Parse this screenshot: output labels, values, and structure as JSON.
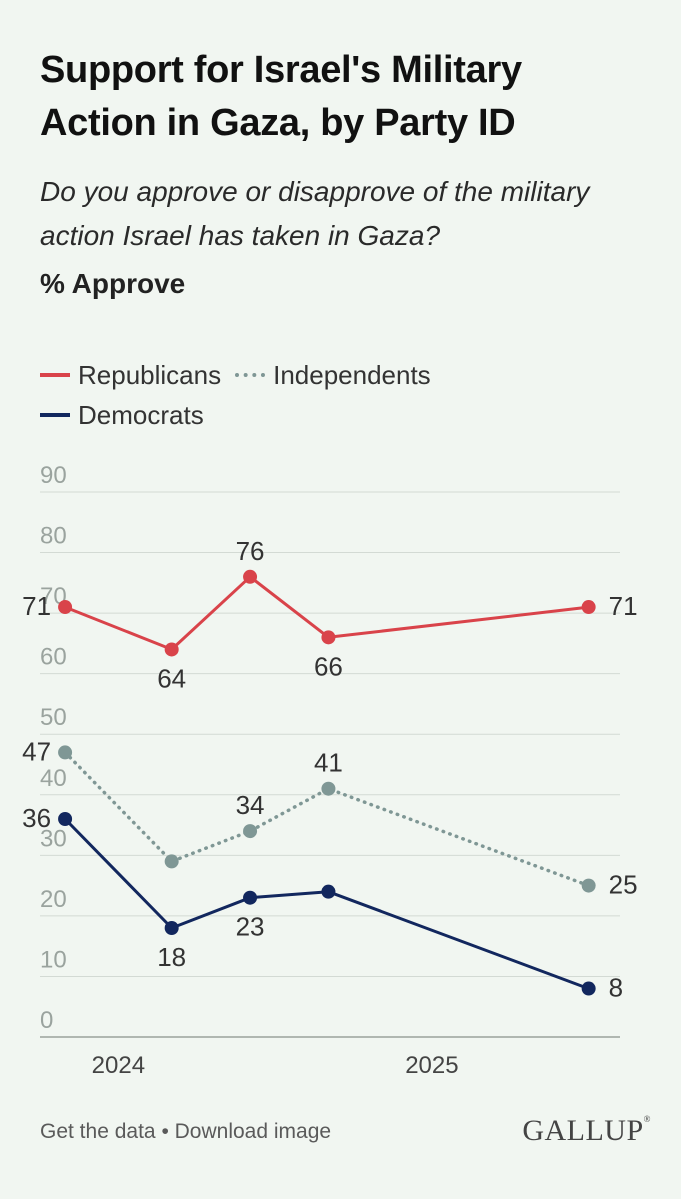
{
  "title": "Support for Israel's Military Action in Gaza, by Party ID",
  "subtitle": "Do you approve or disapprove of the military action Israel has taken in Gaza?",
  "measure": "% Approve",
  "footer": {
    "get_data": "Get the data",
    "separator": "•",
    "download": "Download image",
    "brand": "GALLUP"
  },
  "chart_data": {
    "type": "line",
    "title": "Support for Israel's Military Action in Gaza, by Party ID",
    "ylabel": "% Approve",
    "xlabel": "",
    "ylim": [
      0,
      90
    ],
    "yticks": [
      0,
      10,
      20,
      30,
      40,
      50,
      60,
      70,
      80,
      90
    ],
    "xlim": [
      2023.75,
      2025.6
    ],
    "xticks": [
      {
        "value": 2024.0,
        "label": "2024"
      },
      {
        "value": 2025.0,
        "label": "2025"
      }
    ],
    "grid": true,
    "legend": "top-left",
    "series": [
      {
        "name": "Republicans",
        "key": "rep",
        "color": "#d9434a",
        "style": "solid",
        "x": [
          2023.83,
          2024.17,
          2024.42,
          2024.67,
          2025.5
        ],
        "y": [
          71,
          64,
          76,
          66,
          71
        ],
        "labels": [
          "71",
          "64",
          "76",
          "66",
          "71"
        ]
      },
      {
        "name": "Independents",
        "key": "ind",
        "color": "#7f9795",
        "style": "dotted",
        "x": [
          2023.83,
          2024.17,
          2024.42,
          2024.67,
          2025.5
        ],
        "y": [
          47,
          29,
          34,
          41,
          25
        ],
        "labels": [
          "47",
          "",
          "34",
          "41",
          "25"
        ]
      },
      {
        "name": "Democrats",
        "key": "dem",
        "color": "#12275e",
        "style": "solid",
        "x": [
          2023.83,
          2024.17,
          2024.42,
          2024.67,
          2025.5
        ],
        "y": [
          36,
          18,
          23,
          24,
          8
        ],
        "labels": [
          "36",
          "18",
          "23",
          "",
          "8"
        ]
      }
    ]
  }
}
